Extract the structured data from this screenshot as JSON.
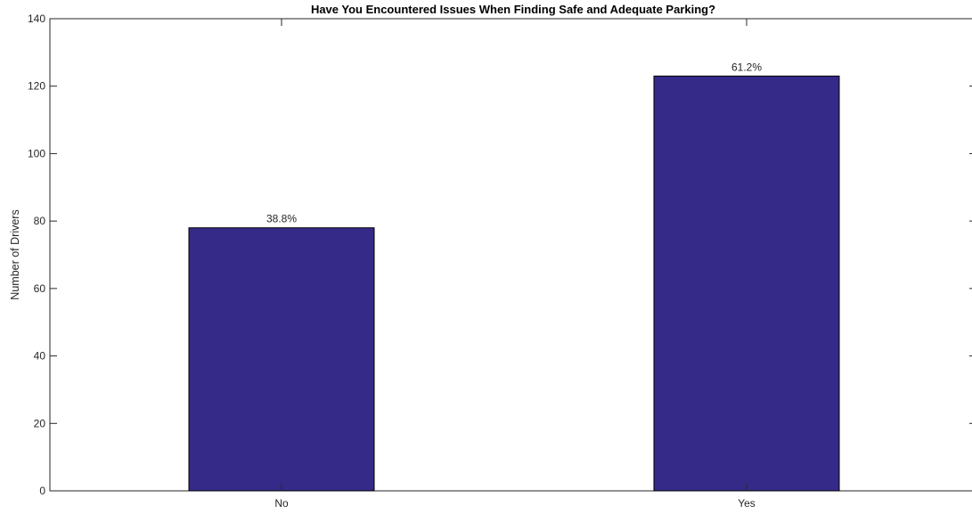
{
  "chart_data": {
    "type": "bar",
    "title": "Have You Encountered Issues When Finding Safe and Adequate Parking?",
    "xlabel": "",
    "ylabel": "Number of Drivers",
    "categories": [
      "No",
      "Yes"
    ],
    "values": [
      78,
      123
    ],
    "data_labels": [
      "38.8%",
      "61.2%"
    ],
    "ylim": [
      0,
      140
    ],
    "yticks": [
      0,
      20,
      40,
      60,
      80,
      100,
      120,
      140
    ],
    "bar_color": "#352a87",
    "grid": false,
    "legend": "none"
  }
}
